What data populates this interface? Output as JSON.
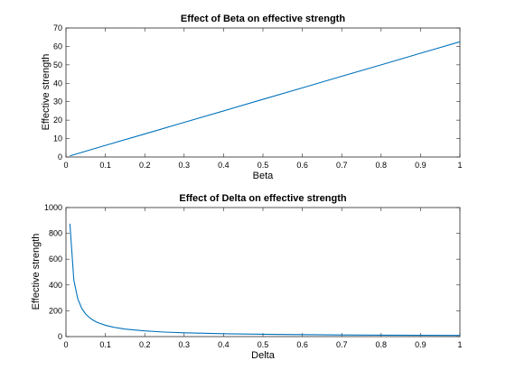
{
  "chart_data": [
    {
      "type": "line",
      "title": "Effect of Beta on effective strength",
      "xlabel": "Beta",
      "ylabel": "Effective strength",
      "xlim": [
        0,
        1
      ],
      "ylim": [
        0,
        70
      ],
      "x_ticks": [
        0,
        0.1,
        0.2,
        0.3,
        0.4,
        0.5,
        0.6,
        0.7,
        0.8,
        0.9,
        1
      ],
      "x_tick_labels": [
        "0",
        "0.1",
        "0.2",
        "0.3",
        "0.4",
        "0.5",
        "0.6",
        "0.7",
        "0.8",
        "0.9",
        "1"
      ],
      "y_ticks": [
        0,
        10,
        20,
        30,
        40,
        50,
        60,
        70
      ],
      "y_tick_labels": [
        "0",
        "10",
        "20",
        "30",
        "40",
        "50",
        "60",
        "70"
      ],
      "grid": false,
      "color": "#0072bd",
      "series": [
        {
          "x": [
            0.01,
            0.1,
            0.2,
            0.3,
            0.4,
            0.5,
            0.6,
            0.7,
            0.8,
            0.9,
            1.0
          ],
          "y": [
            0.6,
            6.3,
            12.5,
            18.8,
            25.0,
            31.3,
            37.5,
            43.8,
            50.0,
            56.3,
            62.5
          ]
        }
      ]
    },
    {
      "type": "line",
      "title": "Effect of Delta on effective strength",
      "xlabel": "Delta",
      "ylabel": "Effective strength",
      "xlim": [
        0,
        1
      ],
      "ylim": [
        0,
        1000
      ],
      "x_ticks": [
        0,
        0.1,
        0.2,
        0.3,
        0.4,
        0.5,
        0.6,
        0.7,
        0.8,
        0.9,
        1
      ],
      "x_tick_labels": [
        "0",
        "0.1",
        "0.2",
        "0.3",
        "0.4",
        "0.5",
        "0.6",
        "0.7",
        "0.8",
        "0.9",
        "1"
      ],
      "y_ticks": [
        0,
        200,
        400,
        600,
        800,
        1000
      ],
      "y_tick_labels": [
        "0",
        "200",
        "400",
        "600",
        "800",
        "1000"
      ],
      "grid": false,
      "color": "#0072bd",
      "series": [
        {
          "x": [
            0.01,
            0.02,
            0.03,
            0.04,
            0.05,
            0.06,
            0.07,
            0.08,
            0.1,
            0.12,
            0.15,
            0.2,
            0.25,
            0.3,
            0.4,
            0.5,
            0.6,
            0.7,
            0.8,
            0.9,
            1.0
          ],
          "y": [
            875,
            438,
            292,
            219,
            175,
            146,
            125,
            109,
            88,
            73,
            58,
            44,
            35,
            29,
            22,
            18,
            15,
            13,
            11,
            10,
            9
          ]
        }
      ]
    }
  ]
}
